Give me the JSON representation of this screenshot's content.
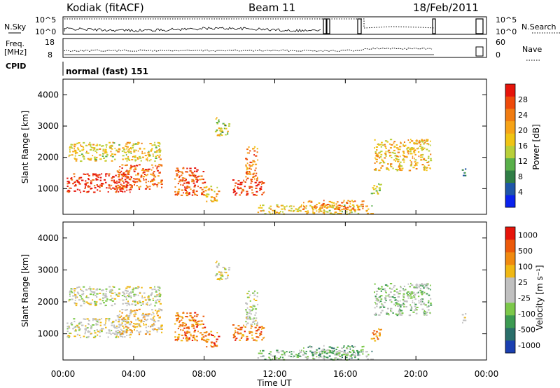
{
  "header": {
    "site": "Kodiak (fitACF)",
    "beam": "Beam 11",
    "date": "18/Feb/2011"
  },
  "status_panels": {
    "nsky_label": "N.Sky",
    "nsky_ticks": [
      "10^5",
      "10^0"
    ],
    "nsearch_label": "N.Search",
    "nsearch_ticks": [
      "10^5",
      "10^0"
    ],
    "freq_label": [
      "Freq.",
      "[MHz]"
    ],
    "freq_ticks": [
      "18",
      "8"
    ],
    "nave_label": "Nave",
    "nave_ticks": [
      "60",
      "0"
    ],
    "cpid_label": "CPID",
    "cpid_text": "normal (fast) 151"
  },
  "colors": {
    "power": [
      "#0a22ee",
      "#1f56a8",
      "#2f7d45",
      "#59b04a",
      "#b8cf39",
      "#f0c414",
      "#f6a317",
      "#f07c12",
      "#ee4a0a",
      "#e6140a"
    ],
    "velocity": [
      "#1a3fb0",
      "#2a6e6a",
      "#3c9a52",
      "#7cc84a",
      "#c0c0c0",
      "#c0c0c0",
      "#f0b814",
      "#f08a10",
      "#ec5a0a",
      "#e6140a"
    ]
  },
  "chart_data": [
    {
      "type": "heatmap",
      "title": "",
      "ylabel": "Slant Range [km]",
      "xlabel": "",
      "x_ticks": [
        "00:00",
        "04:00",
        "08:00",
        "12:00",
        "16:00",
        "20:00",
        "00:00"
      ],
      "y_ticks": [
        "1000",
        "2000",
        "3000",
        "4000"
      ],
      "xlim": [
        0,
        24
      ],
      "ylim": [
        180,
        4500
      ],
      "colorbar": {
        "label": "Power [dB]",
        "ticks": [
          "4",
          "8",
          "12",
          "16",
          "20",
          "24",
          "28"
        ],
        "range": [
          0,
          30
        ]
      },
      "regions": [
        {
          "t0": 0.2,
          "t1": 3.8,
          "r0": 900,
          "r1": 1500,
          "level": 0.92
        },
        {
          "t0": 0.3,
          "t1": 5.5,
          "r0": 1900,
          "r1": 2500,
          "level": 0.55
        },
        {
          "t0": 3.0,
          "t1": 5.6,
          "r0": 1000,
          "r1": 1800,
          "level": 0.8
        },
        {
          "t0": 6.3,
          "t1": 8.0,
          "r0": 800,
          "r1": 1700,
          "level": 0.85
        },
        {
          "t0": 8.0,
          "t1": 8.8,
          "r0": 600,
          "r1": 1100,
          "level": 0.6
        },
        {
          "t0": 8.6,
          "t1": 9.4,
          "r0": 2700,
          "r1": 3300,
          "level": 0.45
        },
        {
          "t0": 9.6,
          "t1": 11.4,
          "r0": 800,
          "r1": 1300,
          "level": 0.88
        },
        {
          "t0": 10.3,
          "t1": 11.0,
          "r0": 1300,
          "r1": 2400,
          "level": 0.75
        },
        {
          "t0": 11.0,
          "t1": 17.5,
          "r0": 200,
          "r1": 500,
          "level": 0.55
        },
        {
          "t0": 13.5,
          "t1": 17.0,
          "r0": 350,
          "r1": 650,
          "level": 0.7
        },
        {
          "t0": 17.4,
          "t1": 18.0,
          "r0": 800,
          "r1": 1200,
          "level": 0.45
        },
        {
          "t0": 17.6,
          "t1": 20.8,
          "r0": 1600,
          "r1": 2600,
          "level": 0.6
        },
        {
          "t0": 22.6,
          "t1": 22.8,
          "r0": 1300,
          "r1": 1700,
          "level": 0.2
        }
      ]
    },
    {
      "type": "heatmap",
      "title": "",
      "ylabel": "Slant Range [km]",
      "xlabel": "Time UT",
      "x_ticks": [
        "00:00",
        "04:00",
        "08:00",
        "12:00",
        "16:00",
        "20:00",
        "00:00"
      ],
      "y_ticks": [
        "1000",
        "2000",
        "3000",
        "4000"
      ],
      "xlim": [
        0,
        24
      ],
      "ylim": [
        180,
        4500
      ],
      "colorbar": {
        "label": "Velocity [m s⁻¹]",
        "ticks": [
          "1000",
          "500",
          "100",
          "25",
          "-25",
          "-100",
          "-500",
          "-1000"
        ],
        "range": [
          -1000,
          1000
        ]
      },
      "regions": [
        {
          "t0": 0.2,
          "t1": 3.8,
          "r0": 900,
          "r1": 1500,
          "level": 0.5
        },
        {
          "t0": 0.3,
          "t1": 5.5,
          "r0": 1900,
          "r1": 2500,
          "level": 0.5
        },
        {
          "t0": 3.0,
          "t1": 5.6,
          "r0": 1000,
          "r1": 1800,
          "level": 0.62
        },
        {
          "t0": 6.3,
          "t1": 8.0,
          "r0": 800,
          "r1": 1700,
          "level": 0.8
        },
        {
          "t0": 8.0,
          "t1": 8.8,
          "r0": 600,
          "r1": 1100,
          "level": 0.8
        },
        {
          "t0": 8.6,
          "t1": 9.4,
          "r0": 2700,
          "r1": 3300,
          "level": 0.52
        },
        {
          "t0": 9.6,
          "t1": 11.4,
          "r0": 800,
          "r1": 1300,
          "level": 0.78
        },
        {
          "t0": 10.3,
          "t1": 11.0,
          "r0": 1300,
          "r1": 2400,
          "level": 0.5
        },
        {
          "t0": 11.0,
          "t1": 17.5,
          "r0": 200,
          "r1": 500,
          "level": 0.35
        },
        {
          "t0": 13.5,
          "t1": 17.0,
          "r0": 350,
          "r1": 650,
          "level": 0.3
        },
        {
          "t0": 17.4,
          "t1": 18.0,
          "r0": 800,
          "r1": 1200,
          "level": 0.75
        },
        {
          "t0": 17.6,
          "t1": 20.8,
          "r0": 1600,
          "r1": 2600,
          "level": 0.42
        },
        {
          "t0": 22.6,
          "t1": 22.8,
          "r0": 1300,
          "r1": 1700,
          "level": 0.5
        }
      ]
    }
  ]
}
